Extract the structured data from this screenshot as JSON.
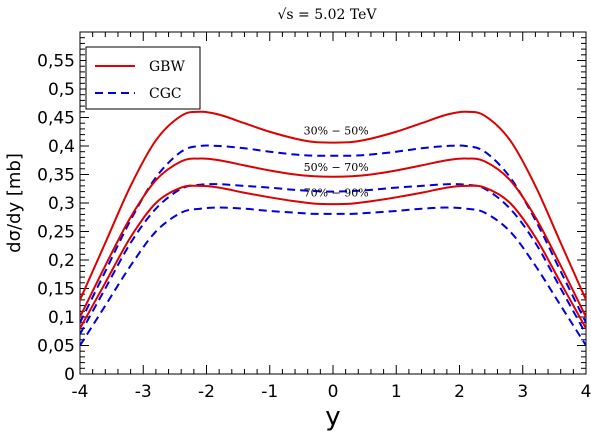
{
  "chart_data": {
    "type": "line",
    "title": "√s = 5.02 TeV",
    "xlabel": "y",
    "ylabel": "dσ/dy [mb]",
    "xlim": [
      -4,
      4
    ],
    "ylim": [
      0,
      0.6
    ],
    "x_ticks": [
      "-4",
      "-3",
      "-2",
      "-1",
      "0",
      "1",
      "2",
      "3",
      "4"
    ],
    "y_ticks": [
      "0",
      "0,05",
      "0,1",
      "0,15",
      "0,2",
      "0,25",
      "0,3",
      "0,35",
      "0,4",
      "0,45",
      "0,5",
      "0,55"
    ],
    "grid": false,
    "legend_placement": "top-left",
    "legend": [
      {
        "label": "GBW",
        "color": "#dd0000",
        "dash": "solid"
      },
      {
        "label": "CGC",
        "color": "#0000dd",
        "dash": "dashed"
      }
    ],
    "x": [
      -4.0,
      -3.6,
      -3.2,
      -2.8,
      -2.4,
      -2.1,
      -1.8,
      -1.4,
      -1.0,
      -0.6,
      -0.3,
      0.0,
      0.3,
      0.6,
      1.0,
      1.4,
      1.8,
      2.1,
      2.4,
      2.8,
      3.2,
      3.6,
      4.0
    ],
    "series": [
      {
        "name": "GBW",
        "centrality": "30% − 50%",
        "color": "#dd0000",
        "dash": "solid",
        "values": [
          0.13,
          0.23,
          0.33,
          0.41,
          0.453,
          0.46,
          0.455,
          0.44,
          0.425,
          0.413,
          0.407,
          0.406,
          0.407,
          0.413,
          0.425,
          0.44,
          0.455,
          0.46,
          0.453,
          0.41,
          0.33,
          0.23,
          0.13
        ]
      },
      {
        "name": "CGC",
        "centrality": "30% − 50%",
        "color": "#0000dd",
        "dash": "dashed",
        "values": [
          0.09,
          0.18,
          0.27,
          0.345,
          0.39,
          0.4,
          0.4,
          0.396,
          0.39,
          0.385,
          0.383,
          0.383,
          0.383,
          0.385,
          0.39,
          0.396,
          0.4,
          0.4,
          0.39,
          0.345,
          0.27,
          0.18,
          0.09
        ]
      },
      {
        "name": "GBW",
        "centrality": "50% − 70%",
        "color": "#dd0000",
        "dash": "solid",
        "values": [
          0.1,
          0.19,
          0.275,
          0.34,
          0.373,
          0.378,
          0.375,
          0.366,
          0.357,
          0.35,
          0.347,
          0.346,
          0.347,
          0.35,
          0.357,
          0.366,
          0.375,
          0.378,
          0.373,
          0.34,
          0.275,
          0.19,
          0.1
        ]
      },
      {
        "name": "CGC",
        "centrality": "50% − 70%",
        "color": "#0000dd",
        "dash": "dashed",
        "values": [
          0.07,
          0.15,
          0.23,
          0.29,
          0.325,
          0.332,
          0.333,
          0.33,
          0.327,
          0.323,
          0.321,
          0.32,
          0.321,
          0.323,
          0.327,
          0.33,
          0.333,
          0.332,
          0.325,
          0.29,
          0.23,
          0.15,
          0.07
        ]
      },
      {
        "name": "GBW",
        "centrality": "70% − 90%",
        "color": "#dd0000",
        "dash": "solid",
        "values": [
          0.08,
          0.16,
          0.24,
          0.3,
          0.327,
          0.33,
          0.327,
          0.318,
          0.31,
          0.303,
          0.299,
          0.298,
          0.299,
          0.303,
          0.31,
          0.318,
          0.327,
          0.33,
          0.327,
          0.3,
          0.24,
          0.16,
          0.08
        ]
      },
      {
        "name": "CGC",
        "centrality": "70% − 90%",
        "color": "#0000dd",
        "dash": "dashed",
        "values": [
          0.05,
          0.12,
          0.19,
          0.25,
          0.283,
          0.29,
          0.292,
          0.29,
          0.286,
          0.283,
          0.281,
          0.281,
          0.281,
          0.283,
          0.286,
          0.29,
          0.292,
          0.29,
          0.283,
          0.25,
          0.19,
          0.12,
          0.05
        ]
      }
    ],
    "annotations": [
      {
        "text": "30% − 50%",
        "x": 0.05,
        "y": 0.42
      },
      {
        "text": "50% − 70%",
        "x": 0.05,
        "y": 0.356
      },
      {
        "text": "70% − 90%",
        "x": 0.05,
        "y": 0.311
      }
    ]
  }
}
